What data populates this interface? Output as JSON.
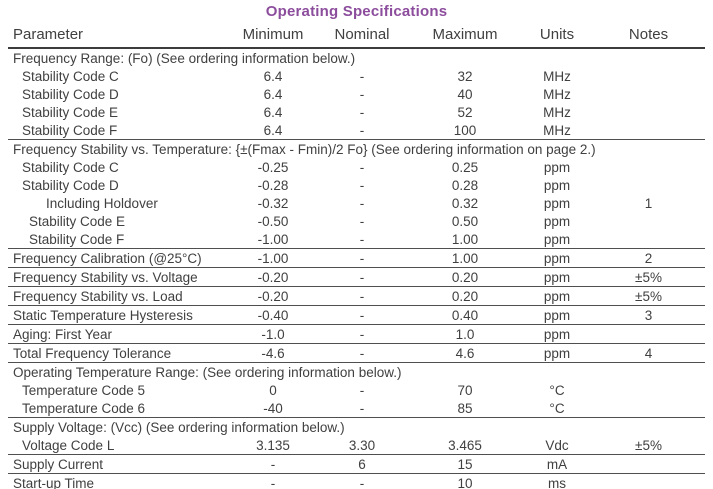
{
  "title": "Operating Specifications",
  "colors": {
    "title_accent": "#8c4d9d",
    "text": "#404040",
    "rule": "#4f4f4f"
  },
  "table": {
    "columns": [
      "Parameter",
      "Minimum",
      "Nominal",
      "Maximum",
      "Units",
      "Notes"
    ],
    "rows": [
      {
        "type": "section",
        "label": "Frequency Range: (Fo) (See ordering information below.)"
      },
      {
        "type": "item",
        "indent": 1,
        "param": "Stability Code C",
        "min": "6.4",
        "nom": "-",
        "max": "32",
        "units": "MHz",
        "notes": ""
      },
      {
        "type": "item",
        "indent": 1,
        "param": "Stability Code D",
        "min": "6.4",
        "nom": "-",
        "max": "40",
        "units": "MHz",
        "notes": ""
      },
      {
        "type": "item",
        "indent": 1,
        "param": "Stability Code E",
        "min": "6.4",
        "nom": "-",
        "max": "52",
        "units": "MHz",
        "notes": ""
      },
      {
        "type": "item",
        "indent": 1,
        "param": "Stability Code F",
        "min": "6.4",
        "nom": "-",
        "max": "100",
        "units": "MHz",
        "notes": "",
        "border": true
      },
      {
        "type": "section",
        "label": "Frequency Stability vs. Temperature: {±(Fmax - Fmin)/2 Fo} (See ordering information on page 2.)"
      },
      {
        "type": "item",
        "indent": 1,
        "param": "Stability Code C",
        "min": "-0.25",
        "nom": "-",
        "max": "0.25",
        "units": "ppm",
        "notes": ""
      },
      {
        "type": "item",
        "indent": 1,
        "param": "Stability Code D",
        "min": "-0.28",
        "nom": "-",
        "max": "0.28",
        "units": "ppm",
        "notes": ""
      },
      {
        "type": "item",
        "indent": 3,
        "param": "Including Holdover",
        "min": "-0.32",
        "nom": "-",
        "max": "0.32",
        "units": "ppm",
        "notes": "1"
      },
      {
        "type": "item",
        "indent": 2,
        "param": "Stability Code E",
        "min": "-0.50",
        "nom": "-",
        "max": "0.50",
        "units": "ppm",
        "notes": ""
      },
      {
        "type": "item",
        "indent": 2,
        "param": "Stability Code F",
        "min": "-1.00",
        "nom": "-",
        "max": "1.00",
        "units": "ppm",
        "notes": "",
        "border": true
      },
      {
        "type": "item",
        "indent": 0,
        "param": "Frequency Calibration (@25°C)",
        "min": "-1.00",
        "nom": "-",
        "max": "1.00",
        "units": "ppm",
        "notes": "2",
        "border": true
      },
      {
        "type": "item",
        "indent": 0,
        "param": "Frequency Stability vs. Voltage",
        "min": "-0.20",
        "nom": "-",
        "max": "0.20",
        "units": "ppm",
        "notes": "±5%",
        "border": true
      },
      {
        "type": "item",
        "indent": 0,
        "param": "Frequency Stability vs. Load",
        "min": "-0.20",
        "nom": "-",
        "max": "0.20",
        "units": "ppm",
        "notes": "±5%",
        "border": true
      },
      {
        "type": "item",
        "indent": 0,
        "param": "Static Temperature Hysteresis",
        "min": "-0.40",
        "nom": "-",
        "max": "0.40",
        "units": "ppm",
        "notes": "3",
        "border": true
      },
      {
        "type": "item",
        "indent": 0,
        "param": "Aging: First Year",
        "min": "-1.0",
        "nom": "-",
        "max": "1.0",
        "units": "ppm",
        "notes": "",
        "border": true
      },
      {
        "type": "item",
        "indent": 0,
        "param": "Total Frequency Tolerance",
        "min": "-4.6",
        "nom": "-",
        "max": "4.6",
        "units": "ppm",
        "notes": "4",
        "border": true
      },
      {
        "type": "section",
        "label": "Operating Temperature Range: (See ordering information below.)"
      },
      {
        "type": "item",
        "indent": 1,
        "param": "Temperature Code 5",
        "min": "0",
        "nom": "-",
        "max": "70",
        "units": "°C",
        "notes": ""
      },
      {
        "type": "item",
        "indent": 1,
        "param": "Temperature Code 6",
        "min": "-40",
        "nom": "-",
        "max": "85",
        "units": "°C",
        "notes": "",
        "border": true
      },
      {
        "type": "section",
        "label": "Supply Voltage: (Vcc) (See ordering information below.)"
      },
      {
        "type": "item",
        "indent": 1,
        "param": "Voltage Code L",
        "min": "3.135",
        "nom": "3.30",
        "max": "3.465",
        "units": "Vdc",
        "notes": "±5%",
        "border": true
      },
      {
        "type": "item",
        "indent": 0,
        "param": "Supply Current",
        "min": "-",
        "nom": "6",
        "max": "15",
        "units": "mA",
        "notes": "",
        "border": true
      },
      {
        "type": "item",
        "indent": 0,
        "param": "Start-up Time",
        "min": "-",
        "nom": "-",
        "max": "10",
        "units": "ms",
        "notes": "",
        "border": "light"
      }
    ]
  }
}
